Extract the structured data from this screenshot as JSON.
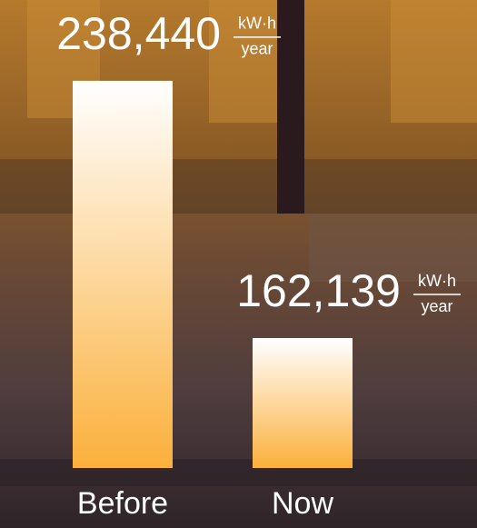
{
  "chart_data": {
    "type": "bar",
    "categories": [
      "Before",
      "Now"
    ],
    "values": [
      238440,
      162139
    ],
    "value_labels": [
      "238,440",
      "162,139"
    ],
    "unit": {
      "numerator": "kW·h",
      "denominator": "year"
    },
    "ylim": [
      123600,
      262400
    ]
  }
}
